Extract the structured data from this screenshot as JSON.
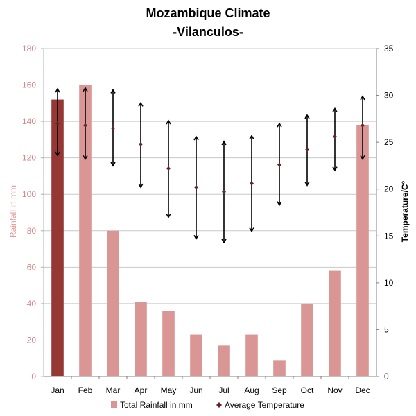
{
  "chart_data": {
    "type": "bar",
    "title": "Mozambique Climate",
    "subtitle": "-Vilanculos-",
    "categories": [
      "Jan",
      "Feb",
      "Mar",
      "Apr",
      "May",
      "Jun",
      "Jul",
      "Aug",
      "Sep",
      "Oct",
      "Nov",
      "Dec"
    ],
    "rainfall": {
      "name": "Total Rainfall in mm",
      "values": [
        152,
        160,
        80,
        41,
        36,
        23,
        17,
        23,
        9,
        40,
        58,
        138
      ],
      "color": "#d99694",
      "highlight_color": "#953735",
      "highlight_index": 0
    },
    "temperature": {
      "name": "Average Temperature",
      "average": [
        27,
        26.8,
        26.5,
        24.8,
        22.2,
        20.2,
        19.7,
        20.6,
        22.6,
        24.2,
        25.6,
        26.8
      ],
      "max": [
        30.7,
        30.8,
        30.6,
        29.2,
        27.3,
        25.6,
        25.1,
        25.7,
        27,
        27.9,
        28.6,
        29.9
      ],
      "min": [
        23.6,
        23.2,
        22.5,
        20.2,
        17,
        14.7,
        14.3,
        15.5,
        18.3,
        20.4,
        22,
        23.2
      ],
      "color": "#632523"
    },
    "y_left": {
      "label": "Rainfall in mm",
      "min": 0,
      "max": 180,
      "ticks": [
        "0",
        "20",
        "40",
        "60",
        "80",
        "100",
        "120",
        "140",
        "160",
        "180"
      ]
    },
    "y_right": {
      "label": "Temperature/C°",
      "min": 0,
      "max": 35,
      "ticks": [
        "0",
        "5",
        "10",
        "15",
        "20",
        "25",
        "30",
        "35"
      ]
    },
    "grid": true,
    "legend_position": "bottom"
  }
}
